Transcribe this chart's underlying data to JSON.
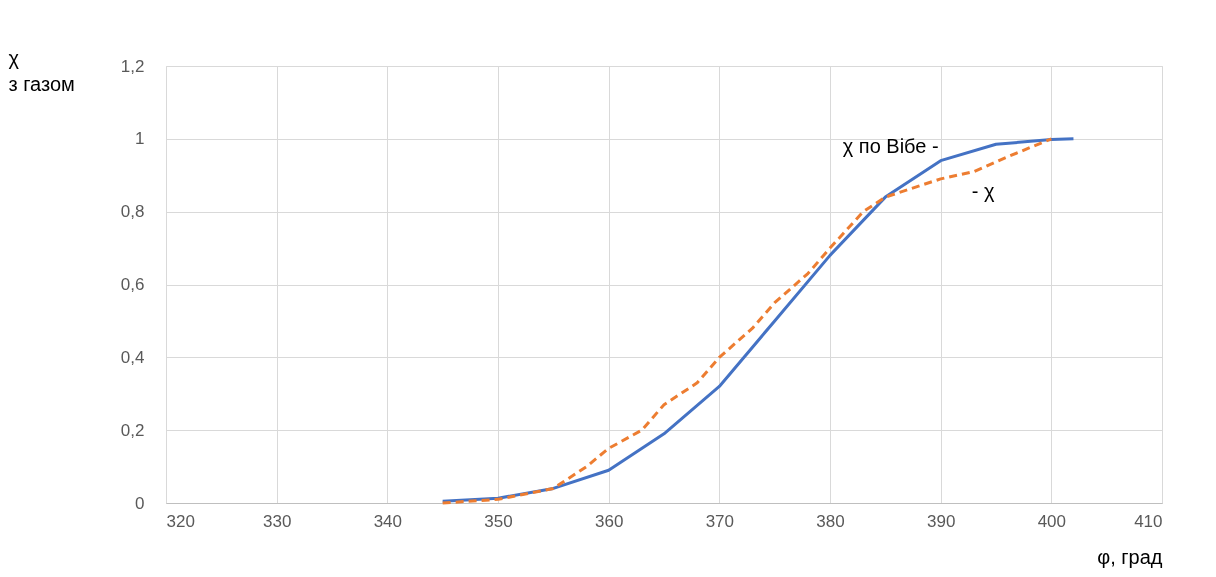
{
  "chart_data": {
    "type": "line",
    "xlabel": "φ, град",
    "ylabel": "χ\nз газом",
    "xlim": [
      320,
      410
    ],
    "xticks": [
      320,
      330,
      340,
      350,
      360,
      370,
      380,
      390,
      400,
      410
    ],
    "ylim": [
      0,
      1.2
    ],
    "yticks": [
      {
        "value": 0,
        "label": "0"
      },
      {
        "value": 0.2,
        "label": "0,2"
      },
      {
        "value": 0.4,
        "label": "0,4"
      },
      {
        "value": 0.6,
        "label": "0,6"
      },
      {
        "value": 0.8,
        "label": "0,8"
      },
      {
        "value": 1,
        "label": "1"
      },
      {
        "value": 1.2,
        "label": "1,2"
      }
    ],
    "grid": true,
    "legend": false,
    "series": [
      {
        "name": "χ по Вібе -",
        "color": "#4472c4",
        "line_style": "solid",
        "x": [
          345,
          350,
          355,
          360,
          365,
          370,
          375,
          380,
          385,
          390,
          395,
          400,
          402
        ],
        "values": [
          0.005,
          0.013,
          0.04,
          0.09,
          0.19,
          0.32,
          0.5,
          0.68,
          0.84,
          0.94,
          0.985,
          0.998,
          1.0
        ]
      },
      {
        "name": "- χ",
        "color": "#ed7d31",
        "line_style": "dashed",
        "x": [
          345,
          350,
          355,
          358,
          360,
          363,
          365,
          368,
          370,
          373,
          375,
          378,
          380,
          383,
          385,
          388,
          390,
          393,
          396,
          400
        ],
        "values": [
          0,
          0.01,
          0.04,
          0.1,
          0.15,
          0.2,
          0.27,
          0.33,
          0.4,
          0.48,
          0.55,
          0.63,
          0.7,
          0.8,
          0.84,
          0.87,
          0.89,
          0.91,
          0.95,
          1.0
        ]
      }
    ]
  }
}
